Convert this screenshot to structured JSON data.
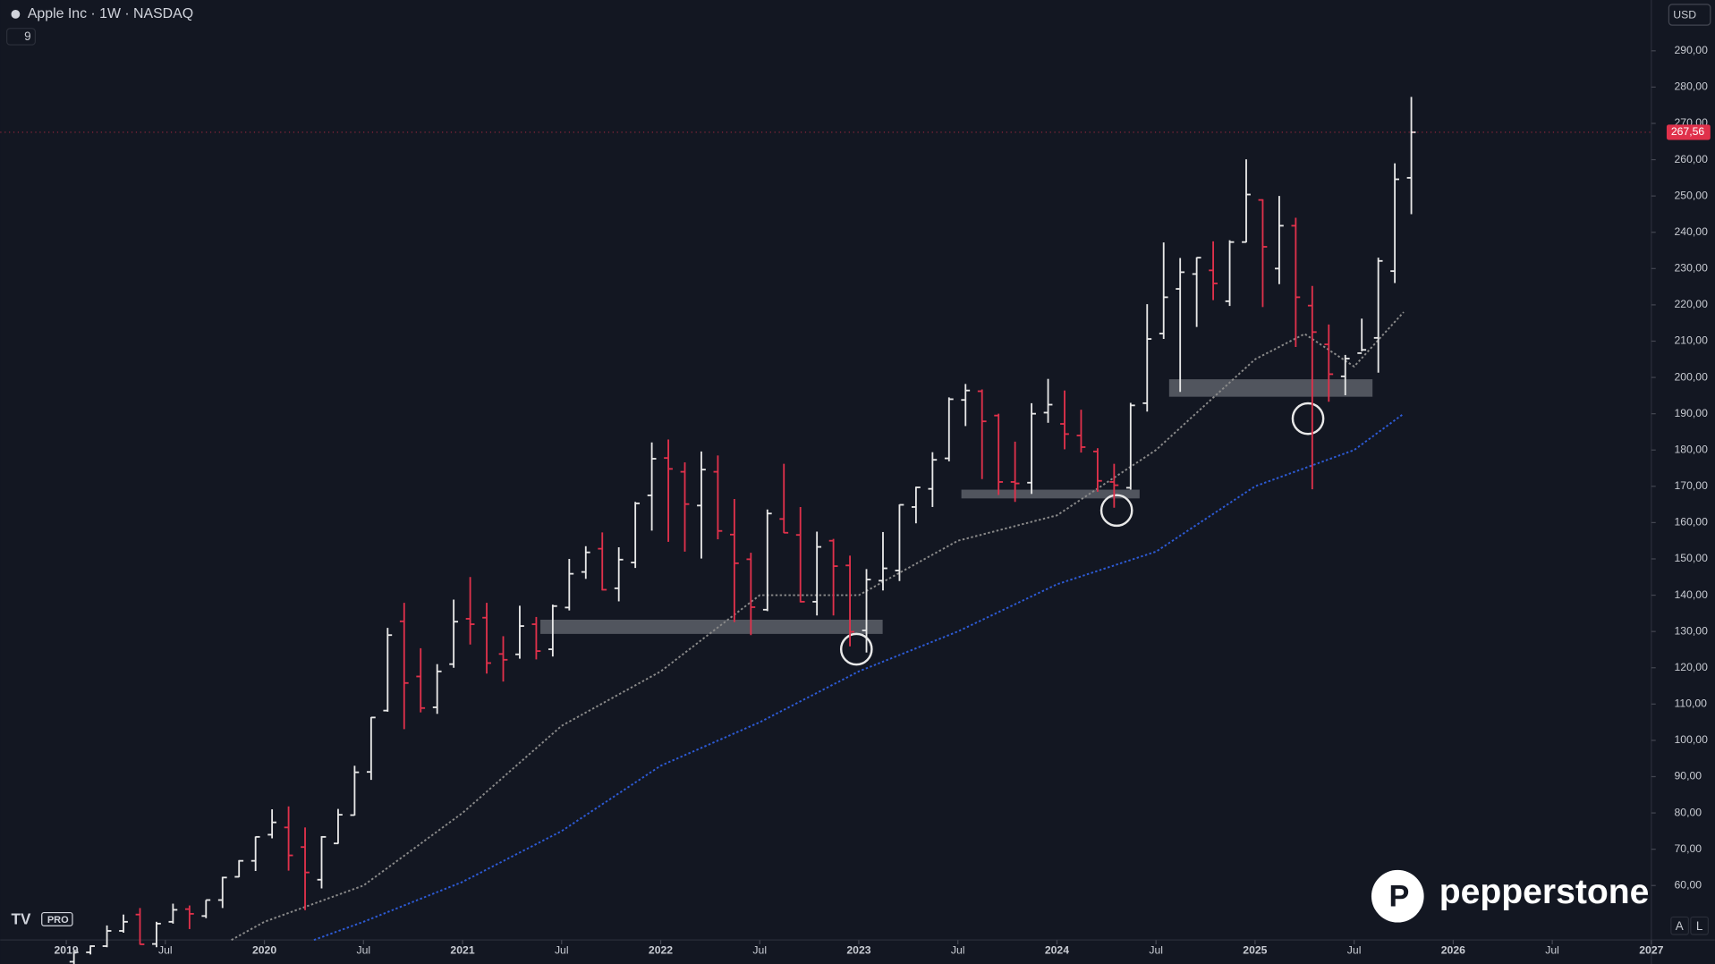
{
  "chart_data": {
    "type": "ohlc",
    "title": "Apple Inc · 1W · NASDAQ",
    "indicator_count": "9",
    "currency": "USD",
    "brand": "pepperstone",
    "logo_badge": "PRO",
    "scale_buttons": [
      "A",
      "L"
    ],
    "up_color": "#e8e8e8",
    "down_color": "#e0314b",
    "current_price": {
      "value": 267.56,
      "label": "267,56"
    },
    "xlim": [
      "2018-09",
      "2027-01"
    ],
    "ylim": [
      45,
      304
    ],
    "xticks": [
      {
        "value": "2019-01",
        "label": "2019"
      },
      {
        "value": "2019-07",
        "label": "Jul"
      },
      {
        "value": "2020-01",
        "label": "2020"
      },
      {
        "value": "2020-07",
        "label": "Jul"
      },
      {
        "value": "2021-01",
        "label": "2021"
      },
      {
        "value": "2021-07",
        "label": "Jul"
      },
      {
        "value": "2022-01",
        "label": "2022"
      },
      {
        "value": "2022-07",
        "label": "Jul"
      },
      {
        "value": "2023-01",
        "label": "2023"
      },
      {
        "value": "2023-07",
        "label": "Jul"
      },
      {
        "value": "2024-01",
        "label": "2024"
      },
      {
        "value": "2024-07",
        "label": "Jul"
      },
      {
        "value": "2025-01",
        "label": "2025"
      },
      {
        "value": "2025-07",
        "label": "Jul"
      },
      {
        "value": "2026-01",
        "label": "2026"
      },
      {
        "value": "2026-07",
        "label": "Jul"
      },
      {
        "value": "2027-01",
        "label": "2027"
      }
    ],
    "yticks": [
      {
        "value": 60,
        "label": "60,00"
      },
      {
        "value": 70,
        "label": "70,00"
      },
      {
        "value": 80,
        "label": "80,00"
      },
      {
        "value": 90,
        "label": "90,00"
      },
      {
        "value": 100,
        "label": "100,00"
      },
      {
        "value": 110,
        "label": "110,00"
      },
      {
        "value": 120,
        "label": "120,00"
      },
      {
        "value": 130,
        "label": "130,00"
      },
      {
        "value": 140,
        "label": "140,00"
      },
      {
        "value": 150,
        "label": "150,00"
      },
      {
        "value": 160,
        "label": "160,00"
      },
      {
        "value": 170,
        "label": "170,00"
      },
      {
        "value": 180,
        "label": "180,00"
      },
      {
        "value": 190,
        "label": "190,00"
      },
      {
        "value": 200,
        "label": "200,00"
      },
      {
        "value": 210,
        "label": "210,00"
      },
      {
        "value": 220,
        "label": "220,00"
      },
      {
        "value": 230,
        "label": "230,00"
      },
      {
        "value": 240,
        "label": "240,00"
      },
      {
        "value": 250,
        "label": "250,00"
      },
      {
        "value": 260,
        "label": "260,00"
      },
      {
        "value": 270,
        "label": "270,00"
      },
      {
        "value": 280,
        "label": "280,00"
      },
      {
        "value": 290,
        "label": "290,00"
      }
    ],
    "x": [
      "2019-01",
      "2019-02",
      "2019-03",
      "2019-04",
      "2019-05",
      "2019-06",
      "2019-07",
      "2019-08",
      "2019-09",
      "2019-10",
      "2019-11",
      "2019-12",
      "2020-01",
      "2020-02",
      "2020-03",
      "2020-04",
      "2020-05",
      "2020-06",
      "2020-07",
      "2020-08",
      "2020-09",
      "2020-10",
      "2020-11",
      "2020-12",
      "2021-01",
      "2021-02",
      "2021-03",
      "2021-04",
      "2021-05",
      "2021-06",
      "2021-07",
      "2021-08",
      "2021-09",
      "2021-10",
      "2021-11",
      "2021-12",
      "2022-01",
      "2022-02",
      "2022-03",
      "2022-04",
      "2022-05",
      "2022-06",
      "2022-07",
      "2022-08",
      "2022-09",
      "2022-10",
      "2022-11",
      "2022-12",
      "2023-01",
      "2023-02",
      "2023-03",
      "2023-04",
      "2023-05",
      "2023-06",
      "2023-07",
      "2023-08",
      "2023-09",
      "2023-10",
      "2023-11",
      "2023-12",
      "2024-01",
      "2024-02",
      "2024-03",
      "2024-04",
      "2024-05",
      "2024-06",
      "2024-07",
      "2024-08",
      "2024-09",
      "2024-10",
      "2024-11",
      "2024-12",
      "2025-01",
      "2025-02",
      "2025-03",
      "2025-04",
      "2025-05",
      "2025-06",
      "2025-07",
      "2025-08",
      "2025-09",
      "2025-10"
    ],
    "open": [
      39,
      41.6,
      43.3,
      47.5,
      52,
      43.9,
      50,
      53.5,
      51.6,
      56,
      62.4,
      66.8,
      74,
      76,
      70.6,
      61.6,
      71.6,
      79.4,
      91.3,
      108.2,
      132.8,
      117.6,
      109.1,
      121,
      133.5,
      133.8,
      123.8,
      123.7,
      132,
      125.1,
      136.6,
      146.4,
      152.8,
      141.9,
      149,
      167.5,
      177.8,
      174,
      164.7,
      174,
      156.7,
      149.9,
      136,
      161,
      156.6,
      138.2,
      155,
      148.2,
      130.3,
      144,
      146.8,
      164.3,
      169.3,
      177.7,
      193.8,
      196.2,
      189.5,
      171.2,
      171,
      190.3,
      187.2,
      184,
      179.6,
      171.2,
      169.6,
      192.9,
      212.1,
      224.4,
      228.5,
      229.5,
      221,
      237.3,
      248.9,
      230,
      241.8,
      219.8,
      209.1,
      200.3,
      206.7,
      210.9,
      229.3,
      255
    ],
    "high": [
      42,
      43.5,
      49,
      52,
      53.8,
      50,
      55,
      54.5,
      56,
      62.4,
      67,
      73.5,
      81,
      81.8,
      76,
      73.6,
      81.1,
      93,
      106.4,
      131,
      137.9,
      125.4,
      121,
      138.8,
      145,
      137.9,
      128.7,
      137.1,
      134,
      137.4,
      150,
      153.5,
      157.3,
      153.2,
      165.7,
      182.1,
      182.9,
      176.6,
      179.6,
      178.5,
      166.5,
      151.7,
      163.6,
      176.2,
      164.3,
      157.5,
      155.5,
      150.9,
      147.2,
      157.4,
      165,
      169.9,
      179.4,
      194.5,
      198.2,
      196.7,
      190,
      182.3,
      192.9,
      199.6,
      196.4,
      191.1,
      180.5,
      176.2,
      193,
      220.2,
      237.2,
      232.9,
      233.1,
      237.5,
      237.8,
      260.1,
      249.1,
      250,
      244,
      225.2,
      214.6,
      206.2,
      216.2,
      233,
      259,
      277.3
    ],
    "low": [
      36,
      41,
      43,
      47,
      43.7,
      43,
      49.5,
      48,
      51,
      53.8,
      62.3,
      64,
      73,
      64.1,
      53.2,
      59.2,
      71.5,
      79.3,
      89.1,
      107.9,
      103.1,
      107.7,
      107.3,
      120,
      126.4,
      118.4,
      116.2,
      122.5,
      122.3,
      123.1,
      135.8,
      144.5,
      141.3,
      138.3,
      147.5,
      157.8,
      154.7,
      152,
      150.1,
      155.4,
      132.6,
      129,
      135.6,
      157.1,
      138,
      134.4,
      134.4,
      125.9,
      124.2,
      141.3,
      143.9,
      159.8,
      164.3,
      176.9,
      186.6,
      172,
      167.6,
      165.7,
      167.9,
      187.5,
      180.2,
      179.3,
      168.5,
      164.1,
      169.1,
      190.6,
      210.6,
      196,
      213.9,
      221.3,
      219.7,
      237.2,
      219.4,
      225.7,
      208.4,
      169.2,
      193.3,
      195.1,
      207.2,
      201.3,
      226,
      245
    ],
    "close": [
      41.6,
      43.3,
      47.5,
      50,
      43.8,
      49.5,
      53.3,
      52.2,
      56,
      62.2,
      66.8,
      73.4,
      77.4,
      68.3,
      63.6,
      73.4,
      79.5,
      91.2,
      106.3,
      129,
      115.8,
      108.9,
      119,
      132.7,
      132,
      121.3,
      122.2,
      131.5,
      124.6,
      137,
      145.9,
      151.8,
      141.5,
      149.8,
      165.3,
      177.6,
      174.8,
      165.1,
      174.6,
      157.7,
      148.8,
      136.7,
      162.5,
      157.2,
      138.2,
      153.3,
      148,
      129.9,
      144.3,
      147.4,
      164.9,
      169.7,
      177.3,
      194,
      196.4,
      187.9,
      171.2,
      170.8,
      190,
      192.5,
      184.4,
      180.8,
      171.5,
      170.3,
      192.3,
      210.6,
      222.1,
      229,
      233,
      225.9,
      237.3,
      250.4,
      236,
      241.8,
      222.1,
      212.5,
      200.9,
      205.2,
      207.6,
      232.1,
      254.6,
      267.56
    ],
    "lines": [
      {
        "color": "#8a8a8a",
        "x": [
          "2019-11",
          "2020-01",
          "2020-07",
          "2021-01",
          "2021-07",
          "2022-01",
          "2022-07",
          "2023-01",
          "2023-07",
          "2024-01",
          "2024-07",
          "2025-01",
          "2025-04",
          "2025-07",
          "2025-10"
        ],
        "values": [
          45,
          50,
          60,
          80,
          104,
          119,
          140,
          140,
          155,
          162,
          180,
          205,
          212,
          203,
          218
        ]
      },
      {
        "color": "#2d5bd6",
        "x": [
          "2020-04",
          "2020-07",
          "2021-01",
          "2021-07",
          "2022-01",
          "2022-07",
          "2023-01",
          "2023-07",
          "2024-01",
          "2024-07",
          "2025-01",
          "2025-07",
          "2025-10"
        ],
        "values": [
          45,
          50,
          61,
          75,
          93,
          105,
          119,
          130,
          143,
          152,
          170,
          180,
          190
        ]
      }
    ]
  }
}
